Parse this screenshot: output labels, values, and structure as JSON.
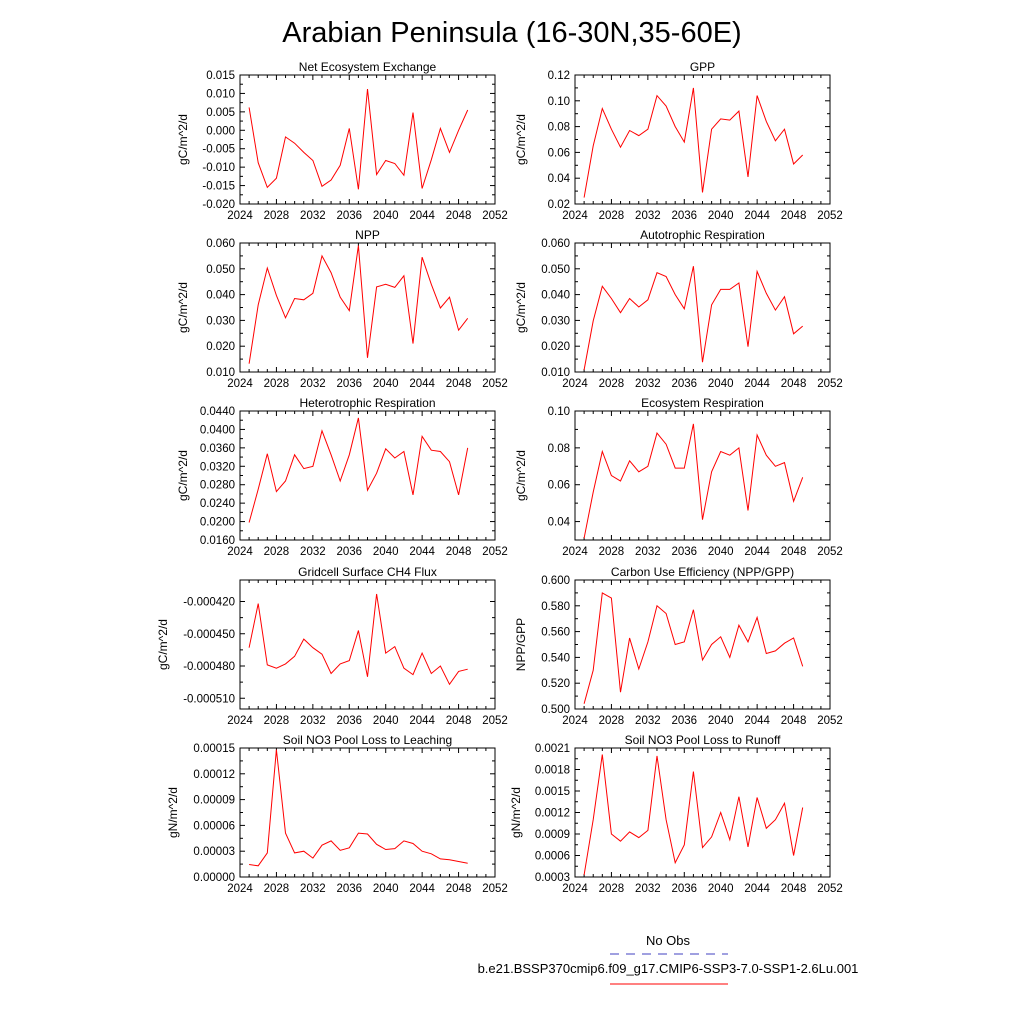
{
  "title": "Arabian Peninsula (16-30N,35-60E)",
  "colors": {
    "series": "#ff0000",
    "obs": "#4040c0",
    "axis": "#000000"
  },
  "legend": {
    "entries": [
      {
        "label": "No Obs",
        "style": "dashed",
        "color": "#4040c0"
      },
      {
        "label": "b.e21.BSSP370cmip6.f09_g17.CMIP6-SSP3-7.0-SSP1-2.6Lu.001",
        "style": "solid",
        "color": "#ff0000"
      }
    ]
  },
  "chart_data": [
    {
      "type": "line",
      "title": "Net Ecosystem Exchange",
      "ylabel": "gC/m^2/d",
      "xlim": [
        2024,
        2052
      ],
      "xticks": [
        2024,
        2028,
        2032,
        2036,
        2040,
        2044,
        2048,
        2052
      ],
      "ylim": [
        -0.02,
        0.015
      ],
      "yticks": [
        -0.02,
        -0.015,
        -0.01,
        -0.005,
        0.0,
        0.005,
        0.01,
        0.015
      ],
      "ytick_labels": [
        "-0.020",
        "-0.015",
        "-0.010",
        "-0.005",
        "0.000",
        "0.005",
        "0.010",
        "0.015"
      ],
      "x": [
        2025,
        2026,
        2027,
        2028,
        2029,
        2030,
        2031,
        2032,
        2033,
        2034,
        2035,
        2036,
        2037,
        2038,
        2039,
        2040,
        2041,
        2042,
        2043,
        2044,
        2045,
        2046,
        2047,
        2048,
        2049
      ],
      "values": [
        0.0062,
        -0.0088,
        -0.0155,
        -0.013,
        -0.0018,
        -0.0035,
        -0.006,
        -0.0082,
        -0.0152,
        -0.0135,
        -0.0095,
        0.0005,
        -0.016,
        0.0112,
        -0.012,
        -0.0082,
        -0.009,
        -0.0122,
        0.0048,
        -0.0158,
        -0.008,
        0.0005,
        -0.006,
        0.0,
        0.0055
      ]
    },
    {
      "type": "line",
      "title": "GPP",
      "ylabel": "gC/m^2/d",
      "xlim": [
        2024,
        2052
      ],
      "xticks": [
        2024,
        2028,
        2032,
        2036,
        2040,
        2044,
        2048,
        2052
      ],
      "ylim": [
        0.02,
        0.12
      ],
      "yticks": [
        0.02,
        0.04,
        0.06,
        0.08,
        0.1,
        0.12
      ],
      "ytick_labels": [
        "0.02",
        "0.04",
        "0.06",
        "0.08",
        "0.10",
        "0.12"
      ],
      "x": [
        2025,
        2026,
        2027,
        2028,
        2029,
        2030,
        2031,
        2032,
        2033,
        2034,
        2035,
        2036,
        2037,
        2038,
        2039,
        2040,
        2041,
        2042,
        2043,
        2044,
        2045,
        2046,
        2047,
        2048,
        2049
      ],
      "values": [
        0.025,
        0.065,
        0.094,
        0.078,
        0.064,
        0.077,
        0.073,
        0.078,
        0.104,
        0.096,
        0.08,
        0.068,
        0.11,
        0.029,
        0.078,
        0.086,
        0.085,
        0.092,
        0.041,
        0.104,
        0.084,
        0.069,
        0.078,
        0.051,
        0.058
      ]
    },
    {
      "type": "line",
      "title": "NPP",
      "ylabel": "gC/m^2/d",
      "xlim": [
        2024,
        2052
      ],
      "xticks": [
        2024,
        2028,
        2032,
        2036,
        2040,
        2044,
        2048,
        2052
      ],
      "ylim": [
        0.01,
        0.06
      ],
      "yticks": [
        0.01,
        0.02,
        0.03,
        0.04,
        0.05,
        0.06
      ],
      "ytick_labels": [
        "0.010",
        "0.020",
        "0.030",
        "0.040",
        "0.050",
        "0.060"
      ],
      "x": [
        2025,
        2026,
        2027,
        2028,
        2029,
        2030,
        2031,
        2032,
        2033,
        2034,
        2035,
        2036,
        2037,
        2038,
        2039,
        2040,
        2041,
        2042,
        2043,
        2044,
        2045,
        2046,
        2047,
        2048,
        2049
      ],
      "values": [
        0.0132,
        0.036,
        0.0503,
        0.0397,
        0.031,
        0.0385,
        0.038,
        0.0405,
        0.055,
        0.0485,
        0.039,
        0.0338,
        0.059,
        0.0155,
        0.043,
        0.044,
        0.0428,
        0.0473,
        0.021,
        0.0545,
        0.044,
        0.0348,
        0.039,
        0.0262,
        0.0308
      ]
    },
    {
      "type": "line",
      "title": "Autotrophic Respiration",
      "ylabel": "gC/m^2/d",
      "xlim": [
        2024,
        2052
      ],
      "xticks": [
        2024,
        2028,
        2032,
        2036,
        2040,
        2044,
        2048,
        2052
      ],
      "ylim": [
        0.01,
        0.06
      ],
      "yticks": [
        0.01,
        0.02,
        0.03,
        0.04,
        0.05,
        0.06
      ],
      "ytick_labels": [
        "0.010",
        "0.020",
        "0.030",
        "0.040",
        "0.050",
        "0.060"
      ],
      "x": [
        2025,
        2026,
        2027,
        2028,
        2029,
        2030,
        2031,
        2032,
        2033,
        2034,
        2035,
        2036,
        2037,
        2038,
        2039,
        2040,
        2041,
        2042,
        2043,
        2044,
        2045,
        2046,
        2047,
        2048,
        2049
      ],
      "values": [
        0.0108,
        0.0298,
        0.0432,
        0.0385,
        0.033,
        0.0385,
        0.0352,
        0.038,
        0.0485,
        0.047,
        0.04,
        0.0345,
        0.051,
        0.0138,
        0.036,
        0.042,
        0.042,
        0.0445,
        0.0198,
        0.049,
        0.0405,
        0.034,
        0.0392,
        0.0248,
        0.0278
      ]
    },
    {
      "type": "line",
      "title": "Heterotrophic Respiration",
      "ylabel": "gC/m^2/d",
      "xlim": [
        2024,
        2052
      ],
      "xticks": [
        2024,
        2028,
        2032,
        2036,
        2040,
        2044,
        2048,
        2052
      ],
      "ylim": [
        0.016,
        0.044
      ],
      "yticks": [
        0.016,
        0.02,
        0.024,
        0.028,
        0.032,
        0.036,
        0.04,
        0.044
      ],
      "ytick_labels": [
        "0.0160",
        "0.0200",
        "0.0240",
        "0.0280",
        "0.0320",
        "0.0360",
        "0.0400",
        "0.0440"
      ],
      "x": [
        2025,
        2026,
        2027,
        2028,
        2029,
        2030,
        2031,
        2032,
        2033,
        2034,
        2035,
        2036,
        2037,
        2038,
        2039,
        2040,
        2041,
        2042,
        2043,
        2044,
        2045,
        2046,
        2047,
        2048,
        2049
      ],
      "values": [
        0.0198,
        0.027,
        0.0347,
        0.0265,
        0.0288,
        0.0345,
        0.0315,
        0.032,
        0.0397,
        0.0345,
        0.0288,
        0.0345,
        0.0425,
        0.0268,
        0.0305,
        0.0358,
        0.0338,
        0.0352,
        0.0258,
        0.0385,
        0.0355,
        0.0352,
        0.033,
        0.0258,
        0.036
      ]
    },
    {
      "type": "line",
      "title": "Ecosystem Respiration",
      "ylabel": "gC/m^2/d",
      "xlim": [
        2024,
        2052
      ],
      "xticks": [
        2024,
        2028,
        2032,
        2036,
        2040,
        2044,
        2048,
        2052
      ],
      "ylim": [
        0.03,
        0.1
      ],
      "yticks": [
        0.04,
        0.06,
        0.08,
        0.1
      ],
      "ytick_labels": [
        "0.04",
        "0.06",
        "0.08",
        "0.10"
      ],
      "x": [
        2025,
        2026,
        2027,
        2028,
        2029,
        2030,
        2031,
        2032,
        2033,
        2034,
        2035,
        2036,
        2037,
        2038,
        2039,
        2040,
        2041,
        2042,
        2043,
        2044,
        2045,
        2046,
        2047,
        2048,
        2049
      ],
      "values": [
        0.031,
        0.056,
        0.078,
        0.065,
        0.062,
        0.073,
        0.067,
        0.07,
        0.088,
        0.082,
        0.069,
        0.069,
        0.093,
        0.041,
        0.067,
        0.078,
        0.076,
        0.08,
        0.046,
        0.087,
        0.076,
        0.07,
        0.072,
        0.051,
        0.064
      ]
    },
    {
      "type": "line",
      "title": "Gridcell Surface CH4 Flux",
      "ylabel": "gC/m^2/d",
      "xlim": [
        2024,
        2052
      ],
      "xticks": [
        2024,
        2028,
        2032,
        2036,
        2040,
        2044,
        2048,
        2052
      ],
      "ylim": [
        -0.00052,
        -0.0004
      ],
      "yticks": [
        -0.00051,
        -0.00048,
        -0.00045,
        -0.00042
      ],
      "ytick_labels": [
        "-0.000510",
        "-0.000480",
        "-0.000450",
        "-0.000420"
      ],
      "x": [
        2025,
        2026,
        2027,
        2028,
        2029,
        2030,
        2031,
        2032,
        2033,
        2034,
        2035,
        2036,
        2037,
        2038,
        2039,
        2040,
        2041,
        2042,
        2043,
        2044,
        2045,
        2046,
        2047,
        2048,
        2049
      ],
      "values": [
        -0.000463,
        -0.000422,
        -0.000479,
        -0.000482,
        -0.000478,
        -0.000471,
        -0.000455,
        -0.000463,
        -0.000469,
        -0.000487,
        -0.000478,
        -0.000475,
        -0.000447,
        -0.00049,
        -0.000413,
        -0.000468,
        -0.000462,
        -0.000482,
        -0.000488,
        -0.000468,
        -0.000487,
        -0.00048,
        -0.000497,
        -0.000485,
        -0.000483
      ]
    },
    {
      "type": "line",
      "title": "Carbon Use Efficiency (NPP/GPP)",
      "ylabel": "NPP/GPP",
      "xlim": [
        2024,
        2052
      ],
      "xticks": [
        2024,
        2028,
        2032,
        2036,
        2040,
        2044,
        2048,
        2052
      ],
      "ylim": [
        0.5,
        0.6
      ],
      "yticks": [
        0.5,
        0.52,
        0.54,
        0.56,
        0.58,
        0.6
      ],
      "ytick_labels": [
        "0.500",
        "0.520",
        "0.540",
        "0.560",
        "0.580",
        "0.600"
      ],
      "x": [
        2025,
        2026,
        2027,
        2028,
        2029,
        2030,
        2031,
        2032,
        2033,
        2034,
        2035,
        2036,
        2037,
        2038,
        2039,
        2040,
        2041,
        2042,
        2043,
        2044,
        2045,
        2046,
        2047,
        2048,
        2049
      ],
      "values": [
        0.504,
        0.53,
        0.59,
        0.586,
        0.513,
        0.555,
        0.531,
        0.552,
        0.58,
        0.574,
        0.55,
        0.552,
        0.577,
        0.538,
        0.55,
        0.556,
        0.54,
        0.565,
        0.552,
        0.571,
        0.543,
        0.545,
        0.551,
        0.555,
        0.533
      ]
    },
    {
      "type": "line",
      "title": "Soil NO3 Pool Loss to Leaching",
      "ylabel": "gN/m^2/d",
      "xlim": [
        2024,
        2052
      ],
      "xticks": [
        2024,
        2028,
        2032,
        2036,
        2040,
        2044,
        2048,
        2052
      ],
      "ylim": [
        0.0,
        0.00015
      ],
      "yticks": [
        0.0,
        3e-05,
        6e-05,
        9e-05,
        0.00012,
        0.00015
      ],
      "ytick_labels": [
        "0.00000",
        "0.00003",
        "0.00006",
        "0.00009",
        "0.00012",
        "0.00015"
      ],
      "x": [
        2025,
        2026,
        2027,
        2028,
        2029,
        2030,
        2031,
        2032,
        2033,
        2034,
        2035,
        2036,
        2037,
        2038,
        2039,
        2040,
        2041,
        2042,
        2043,
        2044,
        2045,
        2046,
        2047,
        2048,
        2049
      ],
      "values": [
        1.45e-05,
        1.3e-05,
        2.8e-05,
        0.000148,
        5.1e-05,
        2.8e-05,
        3e-05,
        2.2e-05,
        3.7e-05,
        4.2e-05,
        3.1e-05,
        3.4e-05,
        5.1e-05,
        5e-05,
        3.8e-05,
        3.2e-05,
        3.3e-05,
        4.2e-05,
        3.9e-05,
        3e-05,
        2.7e-05,
        2.1e-05,
        2e-05,
        1.8e-05,
        1.6e-05
      ]
    },
    {
      "type": "line",
      "title": "Soil NO3 Pool Loss to Runoff",
      "ylabel": "gN/m^2/d",
      "xlim": [
        2024,
        2052
      ],
      "xticks": [
        2024,
        2028,
        2032,
        2036,
        2040,
        2044,
        2048,
        2052
      ],
      "ylim": [
        0.0003,
        0.0021
      ],
      "yticks": [
        0.0003,
        0.0006,
        0.0009,
        0.0012,
        0.0015,
        0.0018,
        0.0021
      ],
      "ytick_labels": [
        "0.0003",
        "0.0006",
        "0.0009",
        "0.0012",
        "0.0015",
        "0.0018",
        "0.0021"
      ],
      "x": [
        2025,
        2026,
        2027,
        2028,
        2029,
        2030,
        2031,
        2032,
        2033,
        2034,
        2035,
        2036,
        2037,
        2038,
        2039,
        2040,
        2041,
        2042,
        2043,
        2044,
        2045,
        2046,
        2047,
        2048,
        2049
      ],
      "values": [
        0.00033,
        0.0011,
        0.00201,
        0.0009,
        0.0008,
        0.00093,
        0.00085,
        0.00095,
        0.00199,
        0.0011,
        0.0005,
        0.00075,
        0.00177,
        0.00071,
        0.00086,
        0.0012,
        0.00082,
        0.00142,
        0.00072,
        0.00141,
        0.00098,
        0.0011,
        0.00133,
        0.0006,
        0.00127
      ]
    }
  ]
}
